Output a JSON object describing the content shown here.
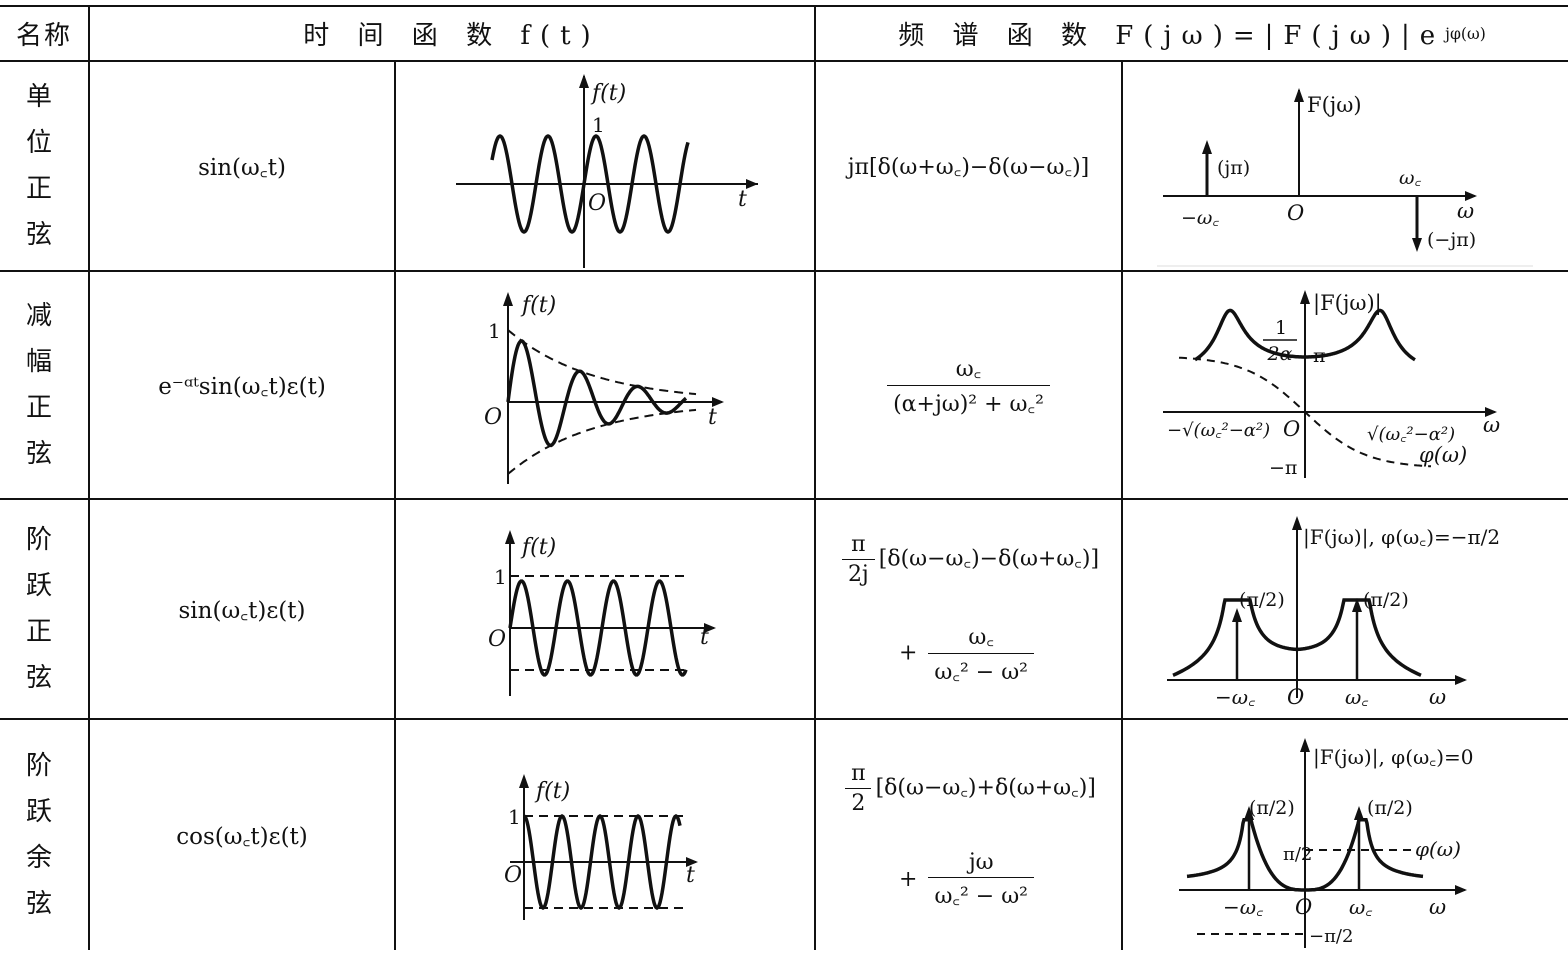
{
  "header": {
    "name": "名称",
    "time": "时 间 函 数 f(t)",
    "spectrum": "频 谱 函 数 F(jω)=|F(jω)|e",
    "spectrum_exp": "jφ(ω)"
  },
  "rows": [
    {
      "name": "单 位 正 弦",
      "time_expr": "sin(ω꜀t)",
      "spectrum_expr": "jπ[δ(ω+ω꜀)−δ(ω−ω꜀)]",
      "plot_labels": {
        "ft": "f(t)",
        "one": "1",
        "origin": "O",
        "t": "t",
        "Fjw": "F(jω)",
        "jpi": "(jπ)",
        "neg_jpi": "(−jπ)",
        "wc": "ω꜀",
        "neg_wc": "−ω꜀",
        "w": "ω"
      }
    },
    {
      "name": "减 幅 正 弦",
      "time_expr": "e⁻ᵅᵗsin(ω꜀t)ε(t)",
      "spectrum_num": "ω꜀",
      "spectrum_den": "(α+jω)² + ω꜀²",
      "plot_labels": {
        "ft": "f(t)",
        "one": "1",
        "origin": "O",
        "t": "t",
        "absF": "|F(jω)|",
        "frac_n": "1",
        "frac_d": "2α",
        "pi": "π",
        "neg_pi": "−π",
        "neg_root": "−√(ω꜀²−α²)",
        "root": "√(ω꜀²−α²)",
        "phi": "φ(ω)",
        "w": "ω"
      }
    },
    {
      "name": "阶 跃 正 弦",
      "time_expr": "sin(ω꜀t)ε(t)",
      "coef_n": "π",
      "coef_d": "2j",
      "spectrum_expr1": "[δ(ω−ω꜀)−δ(ω+ω꜀)]",
      "plus": "+",
      "term2_n": "ω꜀",
      "term2_d": "ω꜀² − ω²",
      "plot_labels": {
        "ft": "f(t)",
        "one": "1",
        "origin": "O",
        "t": "t",
        "absF": "|F(jω)|, φ(ω꜀)=−π/2",
        "pi2": "(π/2)",
        "neg_wc": "−ω꜀",
        "wc": "ω꜀",
        "w": "ω"
      }
    },
    {
      "name": "阶 跃 余 弦",
      "time_expr": "cos(ω꜀t)ε(t)",
      "coef_n": "π",
      "coef_d": "2",
      "spectrum_expr1": "[δ(ω−ω꜀)+δ(ω+ω꜀)]",
      "plus": "+",
      "term2_n": "jω",
      "term2_d": "ω꜀² − ω²",
      "plot_labels": {
        "ft": "f(t)",
        "one": "1",
        "origin": "O",
        "t": "t",
        "absF": "|F(jω)|, φ(ω꜀)=0",
        "pi2": "(π/2)",
        "pi_half": "π/2",
        "neg_pi_half": "−π/2",
        "phi": "φ(ω)",
        "neg_wc": "−ω꜀",
        "wc": "ω꜀",
        "w": "ω"
      }
    }
  ]
}
